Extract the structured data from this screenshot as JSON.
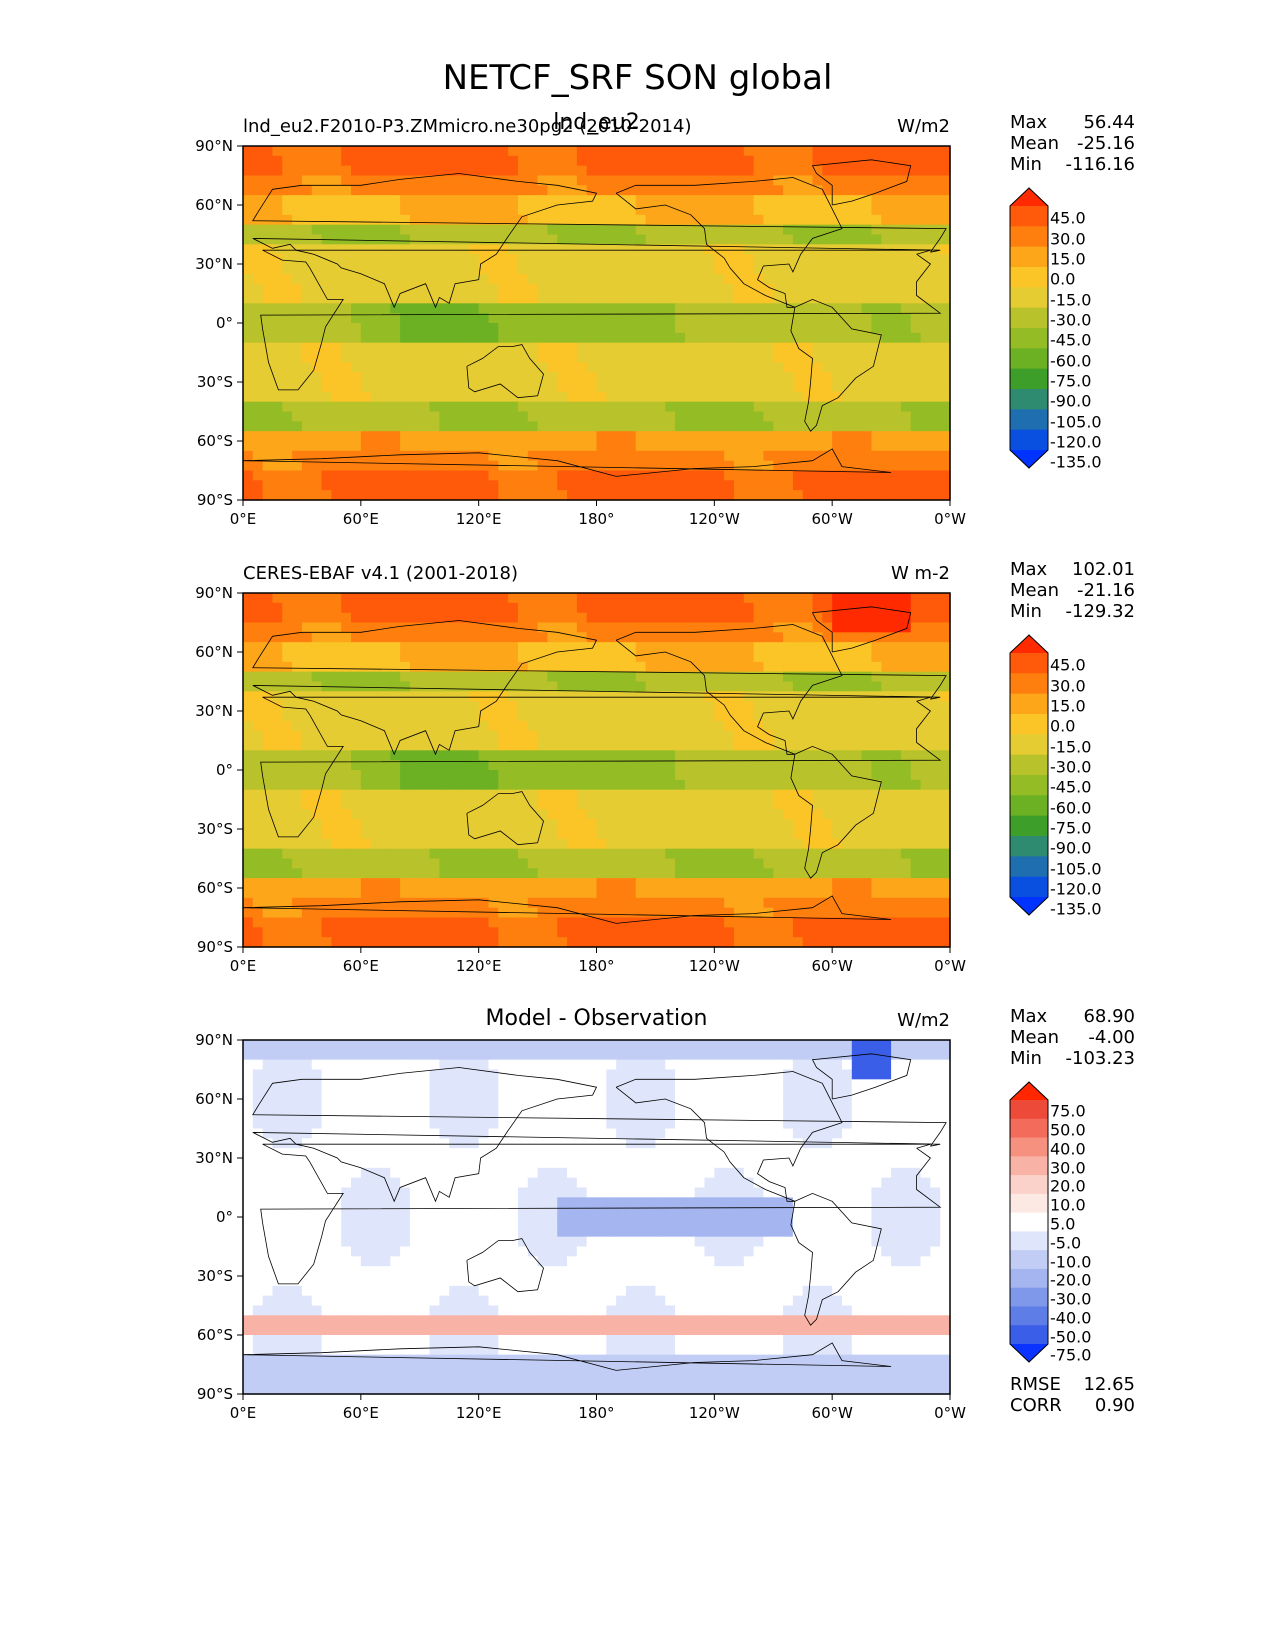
{
  "title": "NETCF_SRF SON global",
  "chart_data": [
    {
      "type": "heatmap",
      "title_left": "lnd_eu2.F2010-P3.ZMmicro.ne30pg2 (2010-2014)",
      "title_center": "lnd_eu2",
      "units": "W/m2",
      "stats": {
        "Max": "56.44",
        "Mean": "-25.16",
        "Min": "-116.16"
      },
      "x_ticks": [
        "0°E",
        "60°E",
        "120°E",
        "180°",
        "120°W",
        "60°W",
        "0°W"
      ],
      "y_ticks": [
        "90°N",
        "60°N",
        "30°N",
        "0°",
        "30°S",
        "60°S",
        "90°S"
      ],
      "xlim": [
        0,
        360
      ],
      "ylim": [
        -90,
        90
      ],
      "colorbar_levels": [
        "45.0",
        "30.0",
        "15.0",
        "0.0",
        "-15.0",
        "-30.0",
        "-45.0",
        "-60.0",
        "-75.0",
        "-90.0",
        "-105.0",
        "-120.0",
        "-135.0"
      ],
      "colorbar_colors": [
        "#ff2a00",
        "#ff5a0a",
        "#ff7f0e",
        "#fda61a",
        "#fbc427",
        "#e6cc33",
        "#b8c22a",
        "#94bc25",
        "#6cb023",
        "#3e9e2a",
        "#2e8b70",
        "#1f6fb0",
        "#0a50e0",
        "#0033ff"
      ]
    },
    {
      "type": "heatmap",
      "title_left": "CERES-EBAF v4.1 (2001-2018)",
      "title_center": "",
      "units": "W m-2",
      "stats": {
        "Max": "102.01",
        "Mean": "-21.16",
        "Min": "-129.32"
      },
      "x_ticks": [
        "0°E",
        "60°E",
        "120°E",
        "180°",
        "120°W",
        "60°W",
        "0°W"
      ],
      "y_ticks": [
        "90°N",
        "60°N",
        "30°N",
        "0°",
        "30°S",
        "60°S",
        "90°S"
      ],
      "xlim": [
        0,
        360
      ],
      "ylim": [
        -90,
        90
      ],
      "colorbar_levels": [
        "45.0",
        "30.0",
        "15.0",
        "0.0",
        "-15.0",
        "-30.0",
        "-45.0",
        "-60.0",
        "-75.0",
        "-90.0",
        "-105.0",
        "-120.0",
        "-135.0"
      ],
      "colorbar_colors": [
        "#ff2a00",
        "#ff5a0a",
        "#ff7f0e",
        "#fda61a",
        "#fbc427",
        "#e6cc33",
        "#b8c22a",
        "#94bc25",
        "#6cb023",
        "#3e9e2a",
        "#2e8b70",
        "#1f6fb0",
        "#0a50e0",
        "#0033ff"
      ]
    },
    {
      "type": "heatmap",
      "title_left": "",
      "title_center": "Model - Observation",
      "units": "W/m2",
      "stats": {
        "Max": "68.90",
        "Mean": "-4.00",
        "Min": "-103.23"
      },
      "footer_stats": {
        "RMSE": "12.65",
        "CORR": "0.90"
      },
      "x_ticks": [
        "0°E",
        "60°E",
        "120°E",
        "180°",
        "120°W",
        "60°W",
        "0°W"
      ],
      "y_ticks": [
        "90°N",
        "60°N",
        "30°N",
        "0°",
        "30°S",
        "60°S",
        "90°S"
      ],
      "xlim": [
        0,
        360
      ],
      "ylim": [
        -90,
        90
      ],
      "colorbar_levels": [
        "75.0",
        "50.0",
        "40.0",
        "30.0",
        "20.0",
        "10.0",
        "5.0",
        "-5.0",
        "-10.0",
        "-20.0",
        "-30.0",
        "-40.0",
        "-50.0",
        "-75.0"
      ],
      "colorbar_colors": [
        "#ff2600",
        "#ee4a3a",
        "#f26b5b",
        "#f6907f",
        "#f9b3a6",
        "#fbd2c9",
        "#fde9e4",
        "#ffffff",
        "#dfe6fb",
        "#c1cdf5",
        "#a4b5f0",
        "#8098ea",
        "#5e7de6",
        "#3a5ee8",
        "#0a33ff"
      ]
    }
  ]
}
